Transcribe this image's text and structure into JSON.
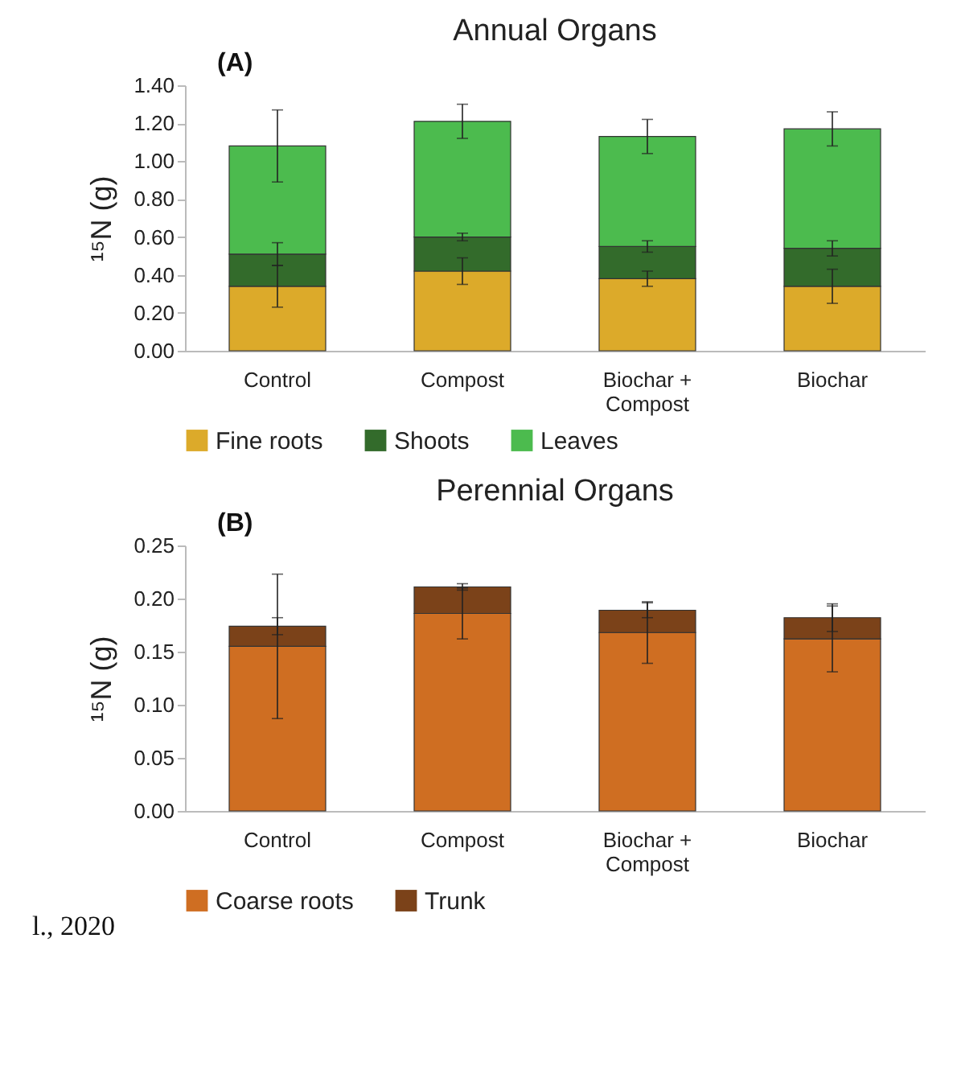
{
  "chart_data": [
    {
      "type": "bar",
      "title": "Annual Organs",
      "annotations": [
        "(A)"
      ],
      "ylabel": "¹⁵N (g)",
      "categories": [
        "Control",
        "Compost",
        "Biochar + Compost",
        "Biochar"
      ],
      "stacked": true,
      "ylim": [
        0,
        1.4
      ],
      "yticks": [
        {
          "value": 0,
          "label": "0.00"
        },
        {
          "value": 0.2,
          "label": "0.20"
        },
        {
          "value": 0.4,
          "label": "0.40"
        },
        {
          "value": 0.6,
          "label": "0.60"
        },
        {
          "value": 0.8,
          "label": "0.80"
        },
        {
          "value": 1,
          "label": "1.00"
        },
        {
          "value": 1.2,
          "label": "1.20"
        },
        {
          "value": 1.4,
          "label": "1.40"
        }
      ],
      "legend": "bottom",
      "series": [
        {
          "name": "Fine roots",
          "color": "#dcaa2a",
          "values": [
            0.34,
            0.42,
            0.38,
            0.34
          ],
          "errors": [
            0.11,
            0.07,
            0.04,
            0.09
          ]
        },
        {
          "name": "Shoots",
          "color": "#336b2b",
          "values": [
            0.17,
            0.18,
            0.17,
            0.2
          ],
          "errors": [
            0.06,
            0.02,
            0.03,
            0.04
          ]
        },
        {
          "name": "Leaves",
          "color": "#4cbb4e",
          "values": [
            0.57,
            0.61,
            0.58,
            0.63
          ],
          "errors": [
            0.19,
            0.09,
            0.09,
            0.09
          ]
        }
      ]
    },
    {
      "type": "bar",
      "title": "Perennial Organs",
      "annotations": [
        "(B)",
        "l., 2020"
      ],
      "ylabel": "¹⁵N (g)",
      "categories": [
        "Control",
        "Compost",
        "Biochar + Compost",
        "Biochar"
      ],
      "stacked": true,
      "ylim": [
        0,
        0.25
      ],
      "yticks": [
        {
          "value": 0,
          "label": "0.00"
        },
        {
          "value": 0.05,
          "label": "0.05"
        },
        {
          "value": 0.1,
          "label": "0.10"
        },
        {
          "value": 0.15,
          "label": "0.15"
        },
        {
          "value": 0.2,
          "label": "0.20"
        },
        {
          "value": 0.25,
          "label": "0.25"
        }
      ],
      "legend": "bottom",
      "series": [
        {
          "name": "Coarse roots",
          "color": "#cf6e22",
          "values": [
            0.155,
            0.186,
            0.168,
            0.162
          ],
          "errors": [
            0.068,
            0.024,
            0.029,
            0.031
          ]
        },
        {
          "name": "Trunk",
          "color": "#7b4219",
          "values": [
            0.019,
            0.025,
            0.021,
            0.02
          ],
          "errors": [
            0.008,
            0.003,
            0.007,
            0.013
          ]
        }
      ]
    }
  ]
}
